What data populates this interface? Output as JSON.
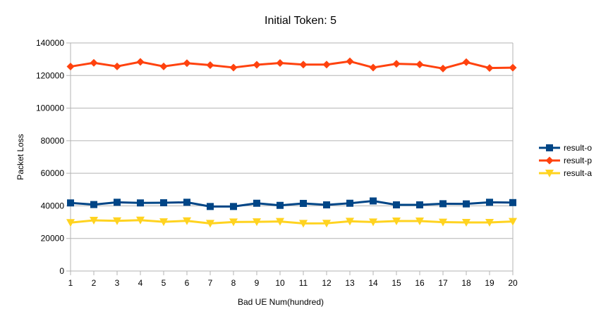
{
  "chart_data": {
    "type": "line",
    "title": "Initial Token: 5",
    "xlabel": "Bad UE Num(hundred)",
    "ylabel": "Packet Loss",
    "ylim": [
      0,
      140000
    ],
    "yticks": [
      0,
      20000,
      40000,
      60000,
      80000,
      100000,
      120000,
      140000
    ],
    "grid": true,
    "legend_position": "right",
    "categories": [
      "1",
      "2",
      "3",
      "4",
      "5",
      "6",
      "7",
      "8",
      "9",
      "10",
      "11",
      "12",
      "13",
      "14",
      "15",
      "16",
      "17",
      "18",
      "19",
      "20"
    ],
    "series": [
      {
        "name": "result-o",
        "color": "#004586",
        "marker": "square",
        "values": [
          41800,
          40800,
          42200,
          41800,
          41900,
          42200,
          39600,
          39600,
          41600,
          40300,
          41500,
          40600,
          41600,
          43000,
          40600,
          40600,
          41300,
          41200,
          42200,
          42000
        ]
      },
      {
        "name": "result-p",
        "color": "#ff420e",
        "marker": "diamond",
        "values": [
          125500,
          127800,
          125600,
          128400,
          125600,
          127600,
          126400,
          124900,
          126600,
          127700,
          126700,
          126700,
          128700,
          124900,
          127200,
          126800,
          124300,
          128200,
          124600,
          124800
        ]
      },
      {
        "name": "result-a",
        "color": "#ffd320",
        "marker": "triangle-down",
        "values": [
          29700,
          31100,
          30800,
          31200,
          30200,
          30800,
          29200,
          30100,
          30200,
          30400,
          29200,
          29300,
          30500,
          30100,
          30700,
          30700,
          30000,
          29800,
          29800,
          30400
        ]
      }
    ]
  }
}
